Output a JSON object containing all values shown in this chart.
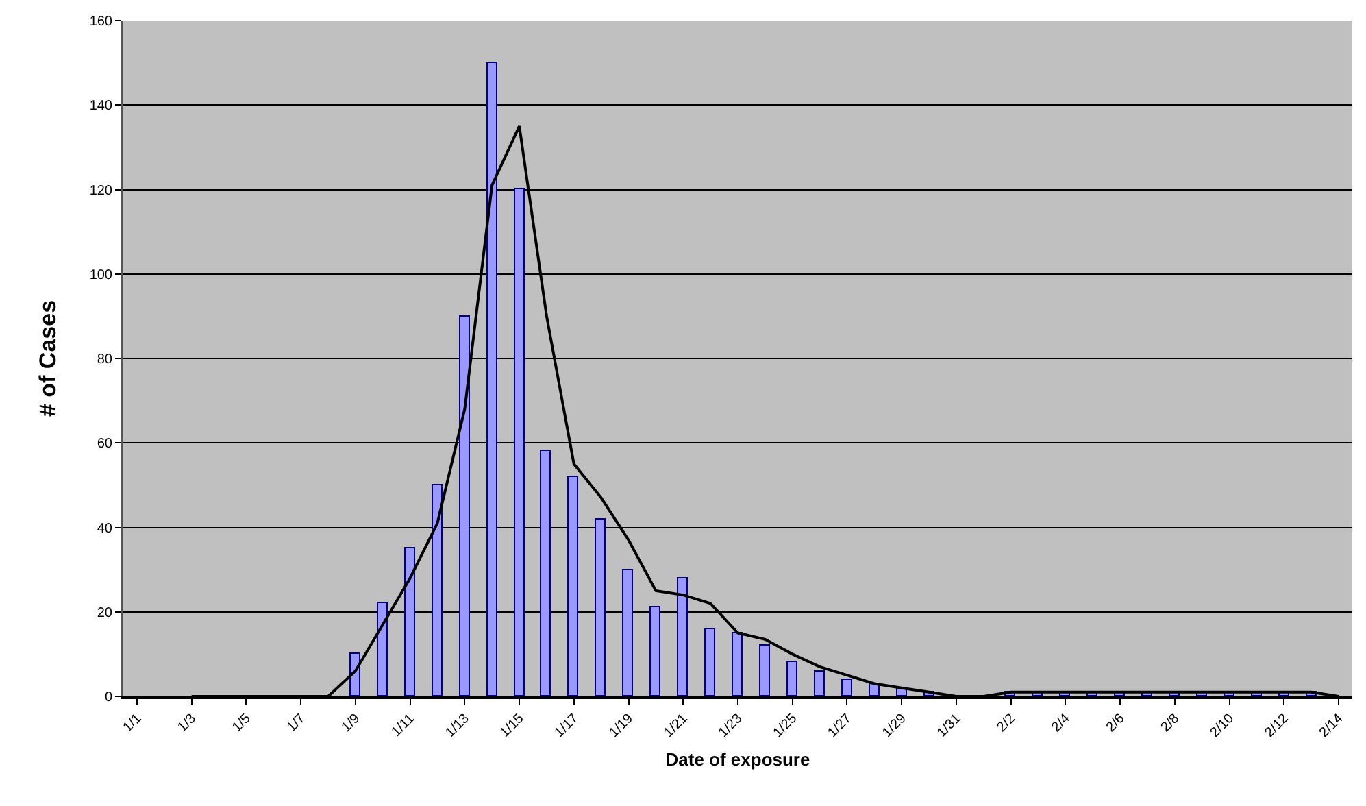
{
  "chart_data": {
    "type": "bar",
    "xlabel": "Date of exposure",
    "ylabel": "# of Cases",
    "categories": [
      "1/1",
      null,
      "1/3",
      null,
      "1/5",
      null,
      "1/7",
      null,
      "1/9",
      null,
      "1/11",
      null,
      "1/13",
      null,
      "1/15",
      null,
      "1/17",
      null,
      "1/19",
      null,
      "1/21",
      null,
      "1/23",
      null,
      "1/25",
      null,
      "1/27",
      null,
      "1/29",
      null,
      "1/31",
      null,
      "2/2",
      null,
      "2/4",
      null,
      "2/6",
      null,
      "2/8",
      null,
      "2/10",
      null,
      "2/12",
      null,
      "2/14"
    ],
    "series": [
      {
        "color": "#9999ff",
        "values": [
          0,
          0,
          0,
          0,
          0,
          0,
          0,
          0,
          10,
          22,
          35,
          50,
          90,
          150,
          120,
          58,
          52,
          42,
          30,
          21,
          28,
          16,
          15,
          12,
          8,
          6,
          4,
          3,
          2,
          1,
          0,
          0,
          1,
          1,
          1,
          1,
          1,
          1,
          1,
          1,
          1,
          1,
          1,
          1,
          0
        ]
      },
      {
        "type": "line",
        "color": "#000000",
        "values": [
          null,
          null,
          0,
          0,
          0,
          0,
          0,
          0,
          6,
          17,
          28,
          41,
          68,
          121,
          135,
          90,
          55,
          47,
          37,
          25,
          24,
          22,
          15,
          13.5,
          10,
          7,
          5,
          3,
          2,
          1,
          0,
          0,
          1,
          1,
          1,
          1,
          1,
          1,
          1,
          1,
          1,
          1,
          1,
          1,
          0
        ]
      }
    ],
    "ylim": [
      0,
      160
    ],
    "yticks": [
      0,
      20,
      40,
      60,
      80,
      100,
      120,
      140,
      160
    ],
    "grid": "y",
    "marker": "none",
    "line_style": "solid"
  }
}
